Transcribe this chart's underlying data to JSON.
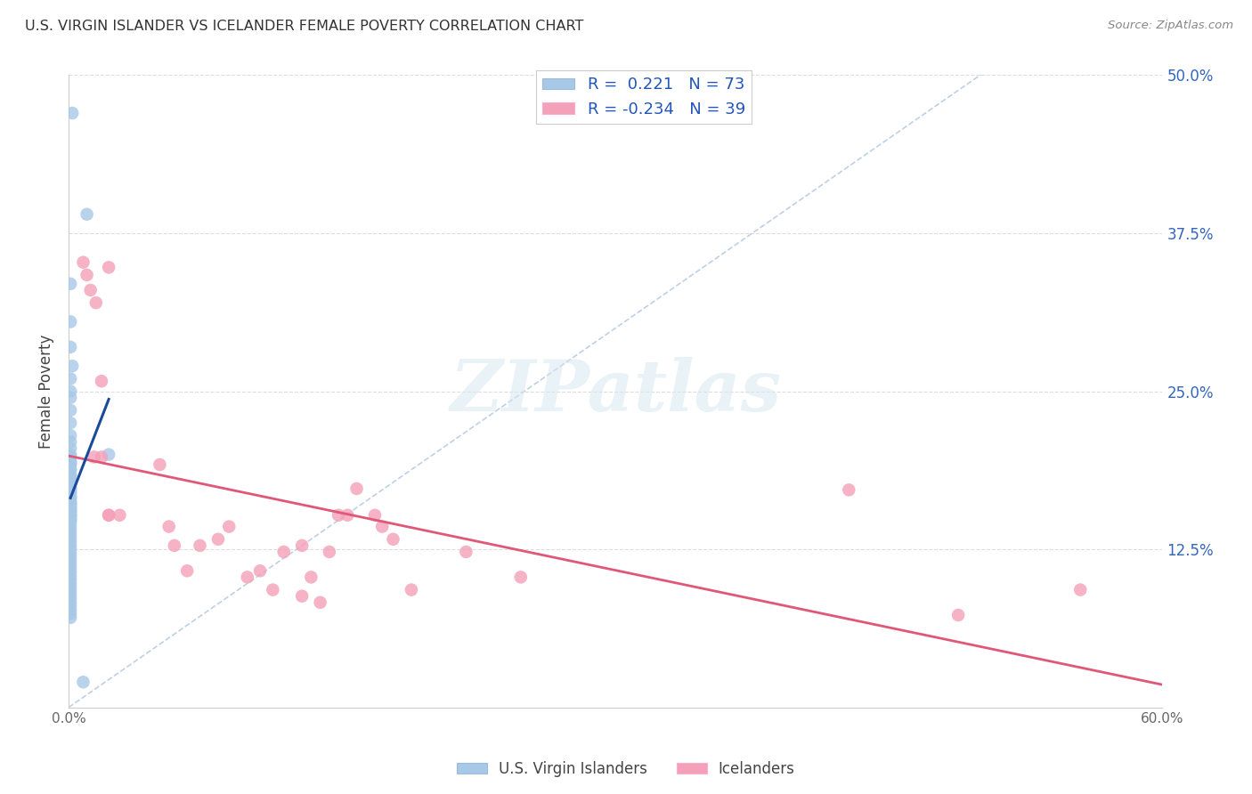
{
  "title": "U.S. VIRGIN ISLANDER VS ICELANDER FEMALE POVERTY CORRELATION CHART",
  "source": "Source: ZipAtlas.com",
  "ylabel": "Female Poverty",
  "xlim": [
    0,
    0.6
  ],
  "ylim": [
    0,
    0.5
  ],
  "yticks": [
    0.0,
    0.125,
    0.25,
    0.375,
    0.5
  ],
  "blue_color": "#A8C8E8",
  "pink_color": "#F4A0B8",
  "blue_line_color": "#1A4A9A",
  "pink_line_color": "#E05878",
  "dash_line_color": "#B0C4DE",
  "r_blue": 0.221,
  "n_blue": 73,
  "r_pink": -0.234,
  "n_pink": 39,
  "blue_scatter_x": [
    0.002,
    0.01,
    0.001,
    0.001,
    0.001,
    0.002,
    0.001,
    0.001,
    0.001,
    0.001,
    0.001,
    0.001,
    0.001,
    0.001,
    0.001,
    0.001,
    0.001,
    0.001,
    0.001,
    0.001,
    0.001,
    0.001,
    0.001,
    0.001,
    0.001,
    0.001,
    0.001,
    0.001,
    0.001,
    0.001,
    0.001,
    0.001,
    0.001,
    0.001,
    0.001,
    0.001,
    0.001,
    0.001,
    0.001,
    0.001,
    0.001,
    0.001,
    0.001,
    0.001,
    0.001,
    0.001,
    0.001,
    0.001,
    0.001,
    0.001,
    0.001,
    0.001,
    0.001,
    0.001,
    0.001,
    0.001,
    0.001,
    0.001,
    0.001,
    0.001,
    0.022,
    0.001,
    0.001,
    0.001,
    0.001,
    0.001,
    0.001,
    0.001,
    0.001,
    0.001,
    0.008,
    0.001,
    0.001
  ],
  "blue_scatter_y": [
    0.47,
    0.39,
    0.335,
    0.305,
    0.285,
    0.27,
    0.26,
    0.25,
    0.245,
    0.235,
    0.225,
    0.215,
    0.21,
    0.205,
    0.2,
    0.198,
    0.193,
    0.188,
    0.183,
    0.178,
    0.173,
    0.17,
    0.166,
    0.162,
    0.16,
    0.157,
    0.155,
    0.152,
    0.15,
    0.148,
    0.195,
    0.192,
    0.188,
    0.184,
    0.18,
    0.176,
    0.173,
    0.17,
    0.167,
    0.164,
    0.161,
    0.158,
    0.155,
    0.152,
    0.149,
    0.146,
    0.143,
    0.14,
    0.137,
    0.134,
    0.131,
    0.128,
    0.125,
    0.122,
    0.119,
    0.116,
    0.113,
    0.11,
    0.107,
    0.104,
    0.2,
    0.101,
    0.098,
    0.095,
    0.092,
    0.089,
    0.086,
    0.083,
    0.08,
    0.077,
    0.02,
    0.074,
    0.071
  ],
  "pink_scatter_x": [
    0.008,
    0.01,
    0.012,
    0.015,
    0.018,
    0.022,
    0.022,
    0.014,
    0.018,
    0.022,
    0.028,
    0.05,
    0.055,
    0.058,
    0.065,
    0.072,
    0.082,
    0.088,
    0.098,
    0.105,
    0.112,
    0.118,
    0.128,
    0.128,
    0.133,
    0.138,
    0.143,
    0.148,
    0.153,
    0.158,
    0.168,
    0.172,
    0.178,
    0.188,
    0.218,
    0.248,
    0.428,
    0.488,
    0.555
  ],
  "pink_scatter_y": [
    0.352,
    0.342,
    0.33,
    0.32,
    0.258,
    0.348,
    0.152,
    0.198,
    0.198,
    0.152,
    0.152,
    0.192,
    0.143,
    0.128,
    0.108,
    0.128,
    0.133,
    0.143,
    0.103,
    0.108,
    0.093,
    0.123,
    0.088,
    0.128,
    0.103,
    0.083,
    0.123,
    0.152,
    0.152,
    0.173,
    0.152,
    0.143,
    0.133,
    0.093,
    0.123,
    0.103,
    0.172,
    0.073,
    0.093
  ]
}
